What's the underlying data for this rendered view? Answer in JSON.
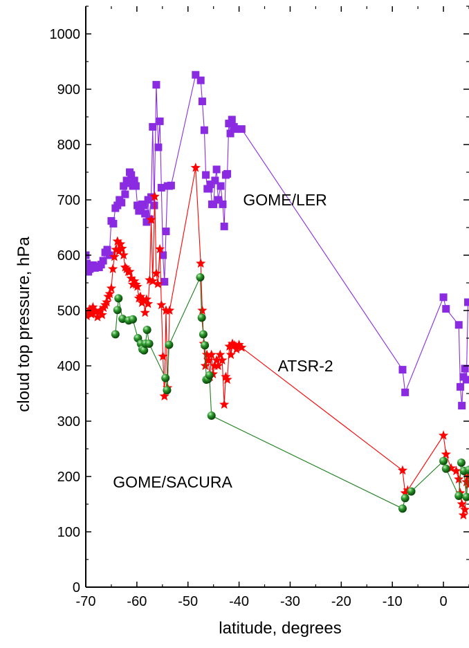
{
  "chart_data": {
    "type": "line",
    "xlabel": "latitude, degrees",
    "ylabel": "cloud top pressure, hPa",
    "xlim": [
      -70,
      5
    ],
    "ylim": [
      0,
      1050
    ],
    "xticks": [
      -70,
      -60,
      -50,
      -40,
      -30,
      -20,
      -10,
      0
    ],
    "xtick_labels": [
      "-70",
      "-60",
      "-50",
      "-40",
      "-30",
      "-20",
      "-10",
      "0"
    ],
    "yticks": [
      0,
      100,
      200,
      300,
      400,
      500,
      600,
      700,
      800,
      900,
      1000
    ],
    "ytick_labels": [
      "0",
      "100",
      "200",
      "300",
      "400",
      "500",
      "600",
      "700",
      "800",
      "900",
      "1000"
    ],
    "grid": false,
    "legend": "none",
    "annotations": [
      {
        "text": "GOME/LER",
        "x": -31,
        "y": 690
      },
      {
        "text": "ATSR-2",
        "x": -27,
        "y": 390
      },
      {
        "text": "GOME/SACURA",
        "x": -53,
        "y": 180
      }
    ],
    "series": [
      {
        "label": "GOME/LER",
        "color": "#8a2be2",
        "marker": "square",
        "x": [
          -70,
          -69.8,
          -69.5,
          -69.2,
          -69,
          -68.6,
          -68.2,
          -67.8,
          -67.4,
          -67,
          -66.6,
          -66.2,
          -65.8,
          -65.4,
          -65,
          -64.6,
          -64.2,
          -63.8,
          -63.4,
          -63,
          -62.6,
          -62.3,
          -62,
          -61.7,
          -61.4,
          -61.1,
          -60.8,
          -60.5,
          -60.2,
          -59.9,
          -59.6,
          -59.3,
          -59,
          -58.7,
          -58.4,
          -58.1,
          -57.8,
          -57.5,
          -57.2,
          -56.9,
          -56.6,
          -56.2,
          -55.8,
          -55.5,
          -55.2,
          -54.9,
          -54.6,
          -54.3,
          -54,
          -53.7,
          -53.3,
          -48.5,
          -47.5,
          -47.2,
          -46.8,
          -46.5,
          -46.2,
          -45.9,
          -45.6,
          -45.3,
          -45,
          -44.7,
          -44.4,
          -44.1,
          -43.6,
          -43.2,
          -42.9,
          -42.6,
          -42.3,
          -42,
          -41.7,
          -41.4,
          -41,
          -40.7,
          -39.5,
          -8,
          -7.5,
          0,
          0.5,
          3,
          3.3,
          3.6,
          3.9,
          4.2,
          4.5,
          4.8,
          5
        ],
        "y": [
          600,
          585,
          570,
          575,
          580,
          582,
          577,
          580,
          578,
          583,
          590,
          605,
          610,
          600,
          662,
          657,
          685,
          690,
          700,
          695,
          725,
          710,
          735,
          730,
          750,
          745,
          725,
          735,
          725,
          690,
          680,
          680,
          692,
          690,
          675,
          660,
          700,
          665,
          705,
          832,
          690,
          908,
          795,
          842,
          722,
          600,
          552,
          643,
          725,
          725,
          726,
          926,
          916,
          878,
          826,
          745,
          720,
          720,
          728,
          692,
          692,
          735,
          755,
          700,
          725,
          692,
          652,
          745,
          747,
          838,
          820,
          845,
          832,
          828,
          828,
          393,
          352,
          524,
          503,
          474,
          362,
          328,
          380,
          395,
          375,
          515,
          515
        ]
      },
      {
        "label": "ATSR-2",
        "color": "#ff0000",
        "marker": "star",
        "x": [
          -70,
          -69.8,
          -69.5,
          -69.2,
          -68.9,
          -68.6,
          -68.3,
          -68,
          -67.7,
          -67.4,
          -67.1,
          -66.8,
          -66.5,
          -66.2,
          -65.9,
          -65.6,
          -65.3,
          -65,
          -64.7,
          -64.4,
          -64.1,
          -63.8,
          -63.5,
          -63.2,
          -62.9,
          -62.6,
          -62.3,
          -62,
          -61.7,
          -61.4,
          -61.1,
          -60.8,
          -60.5,
          -60.2,
          -59.9,
          -59.6,
          -59.3,
          -59,
          -58.7,
          -58.4,
          -58.1,
          -57.8,
          -57.5,
          -57.2,
          -56.9,
          -56.5,
          -56.2,
          -55.9,
          -55.5,
          -55.2,
          -54.9,
          -54.6,
          -54.3,
          -54,
          -53.6,
          -48.5,
          -47.5,
          -47.2,
          -46.9,
          -46.6,
          -46.3,
          -46,
          -45.7,
          -45.4,
          -45.1,
          -44.8,
          -44.4,
          -44.1,
          -43.7,
          -43.3,
          -42.9,
          -42.6,
          -42.3,
          -41.9,
          -41.6,
          -41.3,
          -40.9,
          -40.5,
          -40,
          -39.5,
          -8,
          -7.5,
          -7,
          0,
          0.5,
          1.5,
          2.5,
          3,
          3.3,
          3.6,
          3.9,
          4.2,
          4.5,
          4.8,
          5
        ],
        "y": [
          495,
          490,
          498,
          502,
          493,
          506,
          500,
          497,
          488,
          496,
          500,
          492,
          505,
          510,
          515,
          525,
          530,
          540,
          575,
          597,
          610,
          625,
          607,
          620,
          612,
          600,
          578,
          575,
          570,
          570,
          558,
          547,
          553,
          547,
          543,
          522,
          525,
          514,
          518,
          496,
          520,
          512,
          555,
          664,
          553,
          706,
          567,
          548,
          611,
          510,
          417,
          345,
          500,
          360,
          500,
          758,
          585,
          500,
          440,
          400,
          420,
          410,
          380,
          420,
          385,
          400,
          410,
          400,
          420,
          410,
          330,
          380,
          375,
          435,
          420,
          440,
          437,
          430,
          438,
          433,
          211,
          170,
          175,
          274,
          240,
          215,
          210,
          195,
          170,
          150,
          130,
          140,
          190,
          200,
          185
        ]
      },
      {
        "label": "GOME/SACURA",
        "color": "#1a7f1a",
        "marker": "sphere",
        "x": [
          -64.2,
          -63.8,
          -63.6,
          -62.8,
          -61.6,
          -60.8,
          -59.8,
          -59.2,
          -58.9,
          -58.6,
          -58.3,
          -58,
          -57.6,
          -54.4,
          -54.1,
          -53.7,
          -47.6,
          -47.3,
          -47,
          -46.7,
          -46.4,
          -46.1,
          -45.8,
          -45.4,
          -8,
          -7.5,
          -6.3,
          0,
          0.5,
          3,
          3.5,
          4,
          4.5,
          5
        ],
        "y": [
          457,
          501,
          522,
          485,
          482,
          484,
          450,
          440,
          430,
          428,
          440,
          465,
          440,
          378,
          356,
          438,
          560,
          487,
          457,
          437,
          375,
          376,
          383,
          310,
          142,
          161,
          173,
          228,
          214,
          165,
          225,
          210,
          163,
          212
        ]
      }
    ]
  }
}
